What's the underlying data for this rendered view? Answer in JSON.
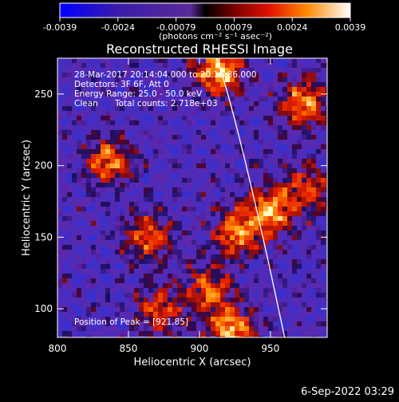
{
  "chart_data": {
    "type": "heatmap",
    "title": "Reconstructed RHESSI Image",
    "xlabel": "Heliocentric X (arcsec)",
    "ylabel": "Heliocentric Y (arcsec)",
    "xlim": [
      800,
      990
    ],
    "ylim": [
      80,
      275
    ],
    "x_ticks": [
      "800",
      "850",
      "900",
      "950"
    ],
    "y_ticks": [
      "100",
      "150",
      "200",
      "250"
    ],
    "colorbar": {
      "ticks": [
        "-0.0039",
        "-0.0024",
        "-0.00079",
        "0.00079",
        "0.0024",
        "0.0039"
      ],
      "label": "(photons cm⁻² s⁻¹ asec⁻²)",
      "range": [
        -0.0039,
        0.0039
      ]
    },
    "annotations": [
      "28-Mar-2017 20:14:04.000 to 20:16:36.000",
      "Detectors: 3F 6F, Att 0",
      "Energy Range: 25.0 - 50.0 keV",
      "Clean",
      "Total counts: 2.718e+03"
    ],
    "peak_label": "Position of Peak = [921,85]",
    "peak": [
      921,
      85
    ],
    "hot_spots": [
      {
        "x": 912,
        "y": 268,
        "v": 1.0
      },
      {
        "x": 972,
        "y": 245,
        "v": 0.8
      },
      {
        "x": 835,
        "y": 205,
        "v": 0.75
      },
      {
        "x": 862,
        "y": 152,
        "v": 0.7
      },
      {
        "x": 925,
        "y": 155,
        "v": 0.8
      },
      {
        "x": 948,
        "y": 170,
        "v": 0.85
      },
      {
        "x": 975,
        "y": 185,
        "v": 0.6
      },
      {
        "x": 870,
        "y": 100,
        "v": 0.6
      },
      {
        "x": 921,
        "y": 85,
        "v": 1.0
      },
      {
        "x": 905,
        "y": 115,
        "v": 0.7
      }
    ]
  },
  "timestamp": "6-Sep-2022 03:29"
}
